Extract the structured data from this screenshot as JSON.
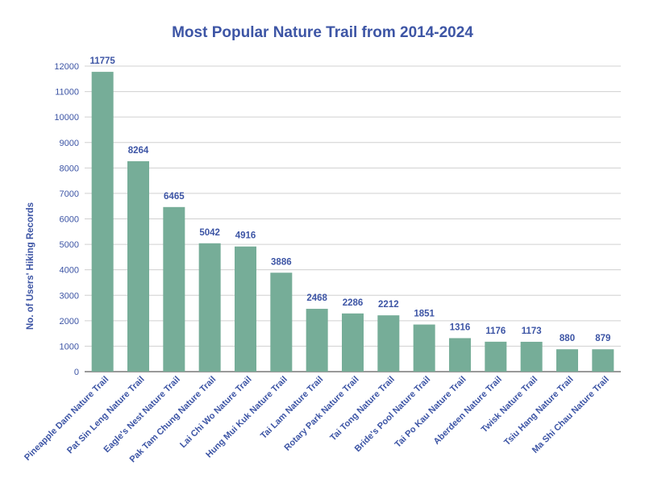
{
  "chart_data": {
    "type": "bar",
    "title": "Most Popular Nature Trail from 2014-2024",
    "xlabel": "",
    "ylabel": "No. of Users' Hiking Records",
    "ylim": [
      0,
      12000
    ],
    "yticks": [
      0,
      1000,
      2000,
      3000,
      4000,
      5000,
      6000,
      7000,
      8000,
      9000,
      10000,
      11000,
      12000
    ],
    "grid": true,
    "bar_color": "#76ad98",
    "text_color": "#3d55a5",
    "categories": [
      "Pineapple Dam Nature Trail",
      "Pat Sin Leng Nature Trail",
      "Eagle's Nest Nature Trail",
      "Pak Tam Chung Nature Trail",
      "Lai Chi Wo Nature Trail",
      "Hung Mui Kuk Nature Trail",
      "Tai Lam Nature Trail",
      "Rotary Park Nature Trail",
      "Tai Tong Nature Trail",
      "Bride's Pool Nature Trail",
      "Tai Po Kau Nature Trail",
      "Aberdeen Nature Trail",
      "Twisk Nature Trail",
      "Tsiu Hang Nature Trail",
      "Ma Shi Chau Nature Trail"
    ],
    "values": [
      11775,
      8264,
      6465,
      5042,
      4916,
      3886,
      2468,
      2286,
      2212,
      1851,
      1316,
      1176,
      1173,
      880,
      879
    ]
  }
}
